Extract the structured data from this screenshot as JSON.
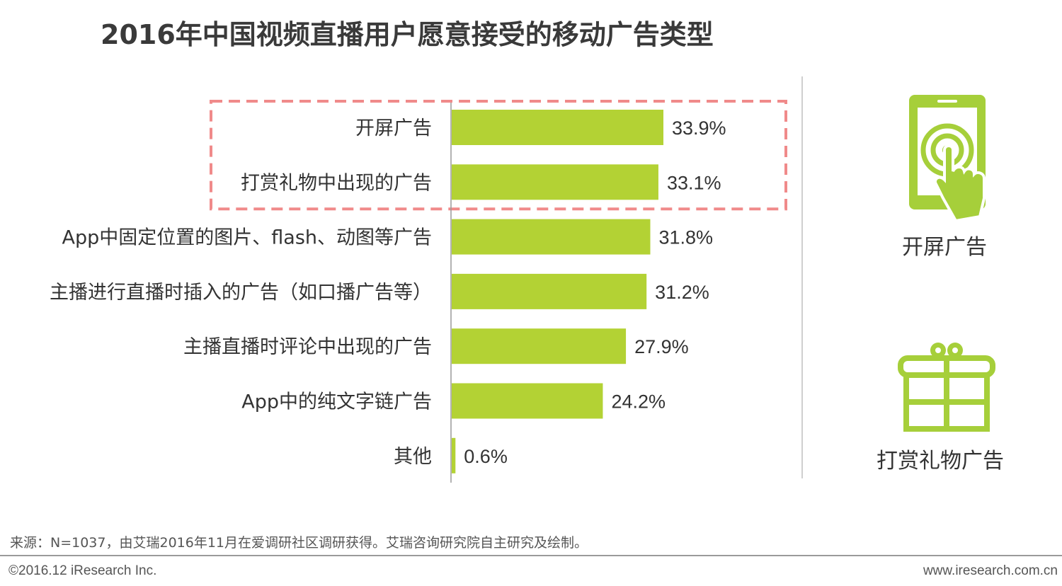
{
  "title": "2016年中国视频直播用户愿意接受的移动广告类型",
  "chart_data": {
    "type": "bar",
    "orientation": "horizontal",
    "categories": [
      "开屏广告",
      "打赏礼物中出现的广告",
      "App中固定位置的图片、flash、动图等广告",
      "主播进行直播时插入的广告（如口播广告等）",
      "主播直播时评论中出现的广告",
      "App中的纯文字链广告",
      "其他"
    ],
    "values": [
      33.9,
      33.1,
      31.8,
      31.2,
      27.9,
      24.2,
      0.6
    ],
    "value_labels": [
      "33.9%",
      "33.1%",
      "31.8%",
      "31.2%",
      "27.9%",
      "24.2%",
      "0.6%"
    ],
    "unit": "%",
    "xlim": [
      0,
      50
    ],
    "highlighted_categories": [
      0,
      1
    ],
    "bar_color": "#b3d234",
    "highlight_border_color": "#f08a8a",
    "grid": false
  },
  "side_panel": {
    "items": [
      {
        "label": "开屏广告",
        "icon": "phone-tap-icon"
      },
      {
        "label": "打赏礼物广告",
        "icon": "gift-icon"
      }
    ],
    "icon_color": "#a6cf3a"
  },
  "source": "来源：N=1037，由艾瑞2016年11月在爱调研社区调研获得。艾瑞咨询研究院自主研究及绘制。",
  "copyright": "©2016.12 iResearch Inc.",
  "website": "www.iresearch.com.cn"
}
